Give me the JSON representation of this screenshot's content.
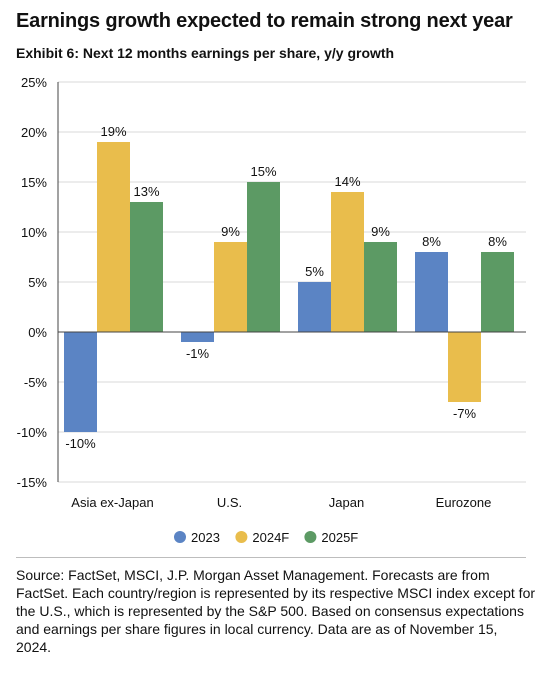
{
  "title": "Earnings growth expected to remain strong next year",
  "subtitle": "Exhibit 6: Next 12 months earnings per share, y/y growth",
  "source": "Source: FactSet, MSCI, J.P. Morgan Asset Management. Forecasts are from FactSet. Each country/region is represented by its respective MSCI index except for the U.S., which is represented by the S&P 500. Based on consensus expectations and earnings per share figures in local currency. Data are as of November 15, 2024.",
  "chart_data": {
    "type": "bar",
    "categories": [
      "Asia ex-Japan",
      "U.S.",
      "Japan",
      "Eurozone"
    ],
    "series": [
      {
        "name": "2023",
        "color": "#5b84c4",
        "values": [
          -10,
          -1,
          5,
          8
        ]
      },
      {
        "name": "2024F",
        "color": "#e9bd4c",
        "values": [
          19,
          9,
          14,
          -7
        ]
      },
      {
        "name": "2025F",
        "color": "#5c9a64",
        "values": [
          13,
          15,
          9,
          8
        ]
      }
    ],
    "ylim": [
      -15,
      25
    ],
    "yticks": [
      "25%",
      "20%",
      "15%",
      "10%",
      "5%",
      "0%",
      "-5%",
      "-10%",
      "-15%"
    ],
    "ytick_values": [
      25,
      20,
      15,
      10,
      5,
      0,
      -5,
      -10,
      -15
    ],
    "grid": true,
    "legend_position": "bottom",
    "value_suffix": "%"
  }
}
